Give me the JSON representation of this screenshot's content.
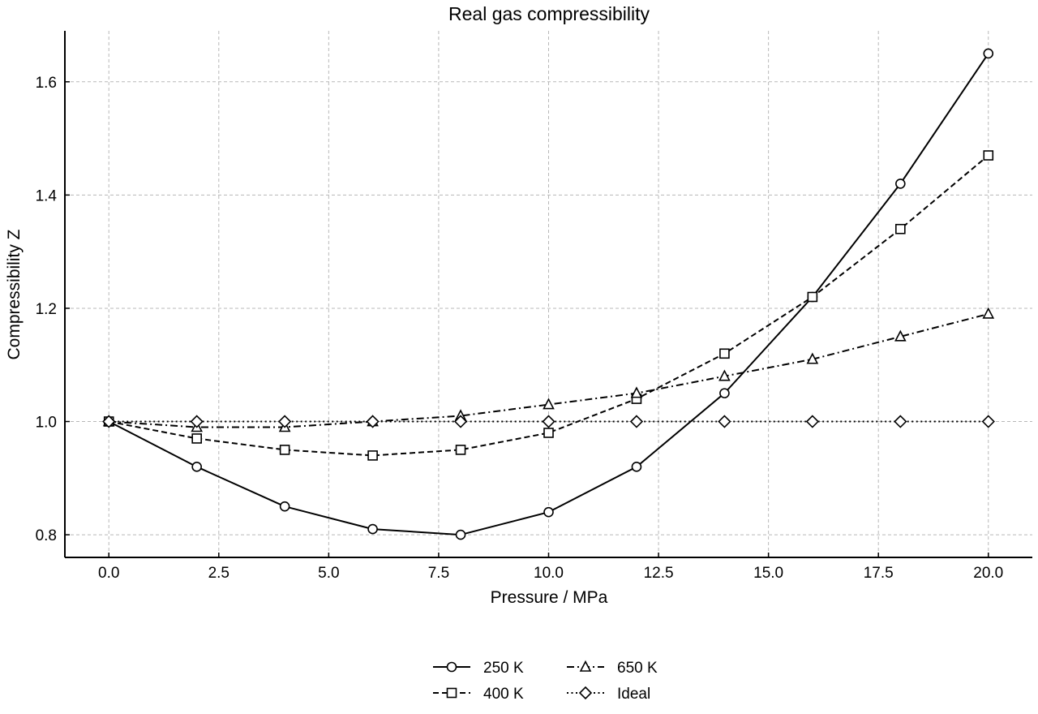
{
  "chart_data": {
    "type": "line",
    "title": "Real gas compressibility",
    "xlabel": "Pressure / MPa",
    "ylabel": "Compressibility Z",
    "xlim": [
      -1,
      21
    ],
    "ylim": [
      0.76,
      1.69
    ],
    "xticks": [
      0.0,
      2.5,
      5.0,
      7.5,
      10.0,
      12.5,
      15.0,
      17.5,
      20.0
    ],
    "xtick_labels": [
      "0.0",
      "2.5",
      "5.0",
      "7.5",
      "10.0",
      "12.5",
      "15.0",
      "17.5",
      "20.0"
    ],
    "yticks": [
      0.8,
      1.0,
      1.2,
      1.4,
      1.6
    ],
    "ytick_labels": [
      "0.8",
      "1.0",
      "1.2",
      "1.4",
      "1.6"
    ],
    "grid": true,
    "legend_placement": "bottom-center",
    "x": [
      0,
      2,
      4,
      6,
      8,
      10,
      12,
      14,
      16,
      18,
      20
    ],
    "series": [
      {
        "name": "250 K",
        "marker": "circle",
        "dash": "solid",
        "values": [
          1.0,
          0.92,
          0.85,
          0.81,
          0.8,
          0.84,
          0.92,
          1.05,
          1.22,
          1.42,
          1.65
        ]
      },
      {
        "name": "400 K",
        "marker": "square",
        "dash": "dashed",
        "values": [
          1.0,
          0.97,
          0.95,
          0.94,
          0.95,
          0.98,
          1.04,
          1.12,
          1.22,
          1.34,
          1.47
        ]
      },
      {
        "name": "650 K",
        "marker": "triangle",
        "dash": "dashdot",
        "values": [
          1.0,
          0.99,
          0.99,
          1.0,
          1.01,
          1.03,
          1.05,
          1.08,
          1.11,
          1.15,
          1.19
        ]
      },
      {
        "name": "Ideal",
        "marker": "diamond",
        "dash": "dotted",
        "values": [
          1.0,
          1.0,
          1.0,
          1.0,
          1.0,
          1.0,
          1.0,
          1.0,
          1.0,
          1.0,
          1.0
        ]
      }
    ]
  }
}
